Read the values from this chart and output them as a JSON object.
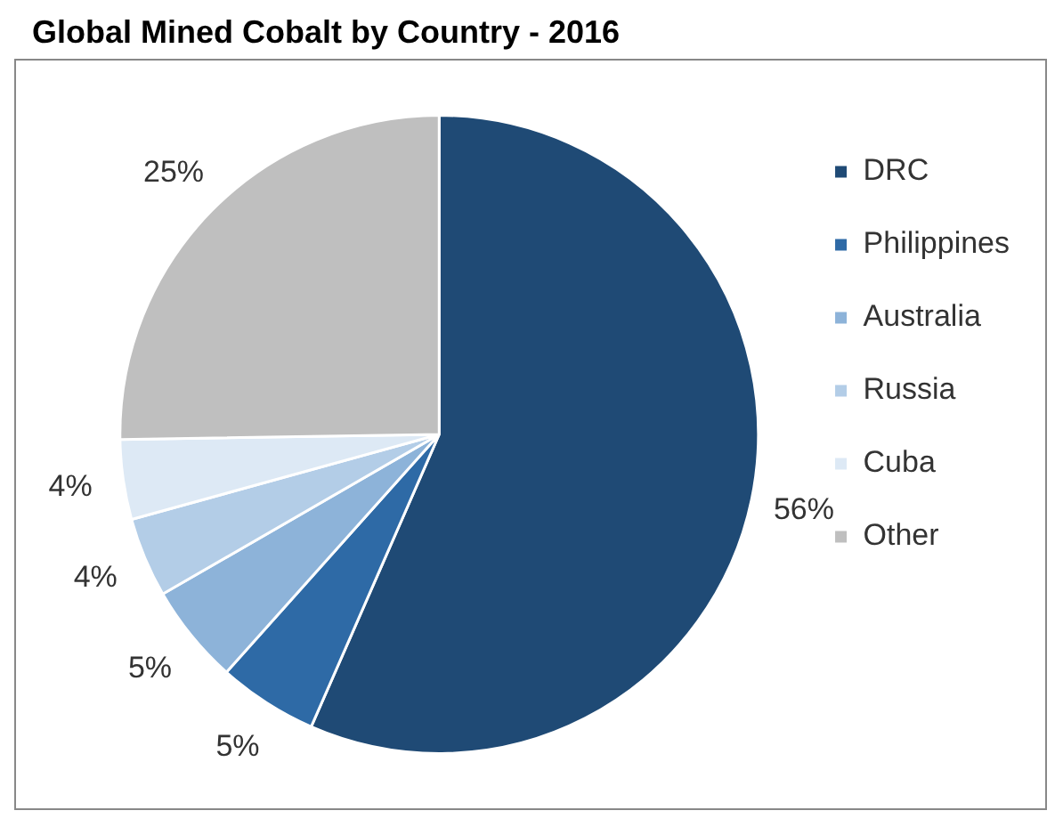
{
  "chart_data": {
    "type": "pie",
    "title": "Global Mined Cobalt by Country - 2016",
    "categories": [
      "DRC",
      "Philippines",
      "Australia",
      "Russia",
      "Cuba",
      "Other"
    ],
    "values": [
      56,
      5,
      5,
      4,
      4,
      25
    ],
    "colors": [
      "#1f4a75",
      "#2e6aa6",
      "#8db3d9",
      "#b3cde7",
      "#dde9f5",
      "#bfbfbf"
    ],
    "value_labels": [
      "56%",
      "5%",
      "5%",
      "4%",
      "4%",
      "25%"
    ],
    "legend": "right"
  }
}
